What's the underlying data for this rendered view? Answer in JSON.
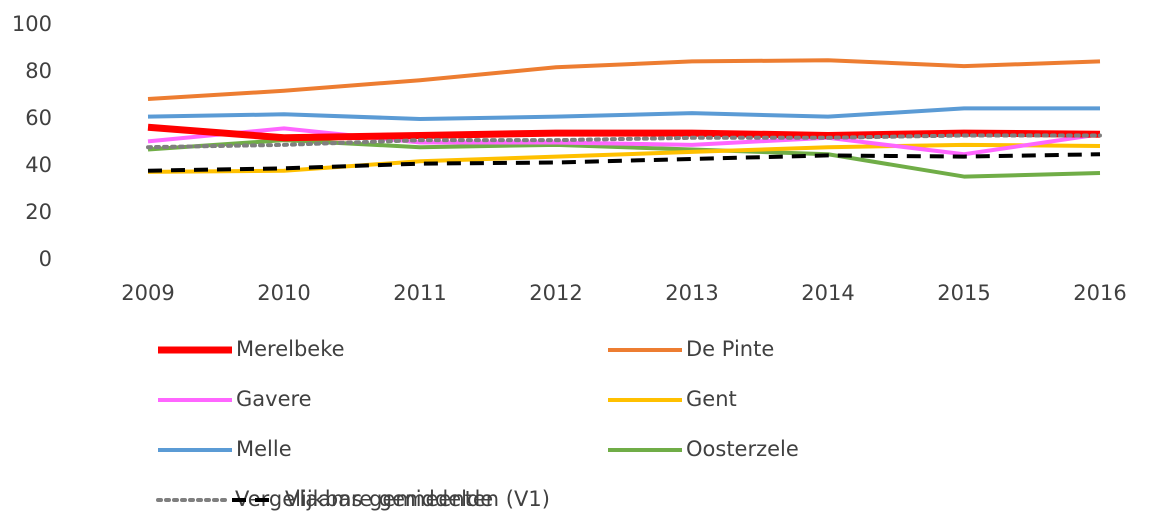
{
  "chart_data": {
    "type": "line",
    "categories": [
      "2009",
      "2010",
      "2011",
      "2012",
      "2013",
      "2014",
      "2015",
      "2016"
    ],
    "ylim": [
      0,
      100
    ],
    "yticks": [
      0,
      20,
      40,
      60,
      80,
      100
    ],
    "grid": false,
    "series": [
      {
        "name": "Merelbeke",
        "color": "#ff0000",
        "width": 7,
        "dash": "solid",
        "values": [
          56.5,
          52,
          53,
          54,
          54,
          53,
          54,
          53.5
        ]
      },
      {
        "name": "De Pinte",
        "color": "#ed7d31",
        "width": 4,
        "dash": "solid",
        "values": [
          68.5,
          72,
          76.5,
          82,
          84.5,
          85,
          82.5,
          84.5
        ]
      },
      {
        "name": "Gavere",
        "color": "#ff66ff",
        "width": 4,
        "dash": "solid",
        "values": [
          50.5,
          56,
          50,
          50,
          49,
          52,
          45,
          53.5
        ]
      },
      {
        "name": "Gent",
        "color": "#ffc000",
        "width": 4,
        "dash": "solid",
        "values": [
          37.5,
          38,
          42,
          44,
          46,
          48,
          49,
          48.5
        ]
      },
      {
        "name": "Melle",
        "color": "#5b9bd5",
        "width": 4,
        "dash": "solid",
        "values": [
          61,
          62,
          60,
          61,
          62.5,
          61,
          64.5,
          64.5
        ]
      },
      {
        "name": "Oosterzele",
        "color": "#70ad47",
        "width": 4,
        "dash": "solid",
        "values": [
          47,
          51,
          48,
          49,
          47,
          45,
          35.5,
          37
        ]
      },
      {
        "name": "Vergelijkbare gemeenten (V1)",
        "color": "#7f7f7f",
        "width": 4,
        "dash": "dot",
        "values": [
          48,
          49,
          51,
          51,
          52,
          52,
          53,
          53
        ]
      },
      {
        "name": "Vlaams gemiddelde",
        "color": "#000000",
        "width": 4,
        "dash": "dash",
        "values": [
          38,
          39,
          41,
          41.5,
          43,
          44.5,
          44,
          45
        ]
      }
    ]
  }
}
